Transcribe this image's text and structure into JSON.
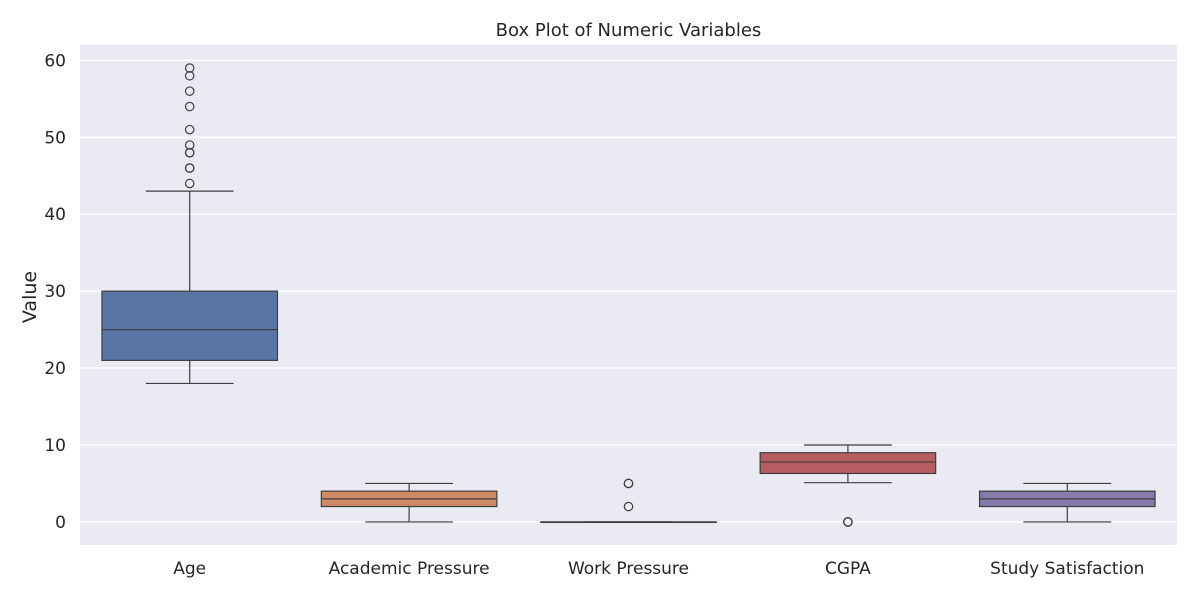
{
  "chart_data": {
    "type": "box",
    "title": "Box Plot of Numeric Variables",
    "xlabel": "",
    "ylabel": "Value",
    "ylim": [
      -3,
      62
    ],
    "yticks": [
      0,
      10,
      20,
      30,
      40,
      50,
      60
    ],
    "grid": true,
    "categories": [
      "Age",
      "Academic Pressure",
      "Work Pressure",
      "CGPA",
      "Study Satisfaction"
    ],
    "boxes": [
      {
        "category": "Age",
        "whisker_low": 18,
        "q1": 21,
        "median": 25,
        "q3": 30,
        "whisker_high": 43,
        "outliers": [
          44,
          46,
          46,
          48,
          48,
          49,
          51,
          54,
          56,
          58,
          59
        ],
        "color": "#5875a4"
      },
      {
        "category": "Academic Pressure",
        "whisker_low": 0,
        "q1": 2,
        "median": 3,
        "q3": 4,
        "whisker_high": 5,
        "outliers": [],
        "color": "#cc8963"
      },
      {
        "category": "Work Pressure",
        "whisker_low": 0,
        "q1": 0,
        "median": 0,
        "q3": 0,
        "whisker_high": 0,
        "outliers": [
          2,
          5,
          5
        ],
        "color": "#5f9e6e"
      },
      {
        "category": "CGPA",
        "whisker_low": 5.1,
        "q1": 6.3,
        "median": 7.8,
        "q3": 9,
        "whisker_high": 10,
        "outliers": [
          0,
          0,
          0
        ],
        "color": "#b55d60"
      },
      {
        "category": "Study Satisfaction",
        "whisker_low": 0,
        "q1": 2,
        "median": 3,
        "q3": 4,
        "whisker_high": 5,
        "outliers": [],
        "color": "#857aab"
      }
    ],
    "colors": {
      "background": "#eaeaf2",
      "grid": "#ffffff",
      "line": "#3f3f3f"
    }
  }
}
